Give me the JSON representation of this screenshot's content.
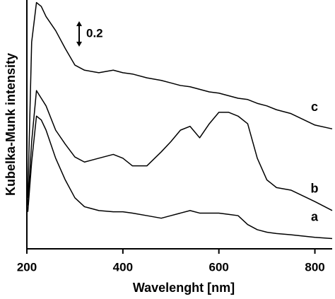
{
  "chart_data": {
    "type": "line",
    "x_label": "Wavelenght [nm]",
    "y_label": "Kubelka-Munk intensity",
    "x": [
      202,
      210,
      220,
      230,
      240,
      260,
      280,
      300,
      320,
      350,
      380,
      400,
      420,
      450,
      480,
      500,
      520,
      540,
      560,
      580,
      600,
      620,
      640,
      660,
      680,
      700,
      720,
      750,
      800,
      836
    ],
    "series": [
      {
        "name": "a",
        "color": "#000000",
        "values": [
          0.29,
          0.68,
          1.04,
          1.01,
          0.93,
          0.71,
          0.54,
          0.4,
          0.33,
          0.3,
          0.29,
          0.29,
          0.28,
          0.26,
          0.24,
          0.26,
          0.28,
          0.3,
          0.28,
          0.28,
          0.28,
          0.27,
          0.26,
          0.19,
          0.15,
          0.13,
          0.12,
          0.11,
          0.09,
          0.08
        ]
      },
      {
        "name": "b",
        "color": "#000000",
        "values": [
          0.34,
          0.84,
          1.24,
          1.18,
          1.12,
          0.93,
          0.82,
          0.72,
          0.68,
          0.71,
          0.74,
          0.71,
          0.65,
          0.65,
          0.76,
          0.84,
          0.93,
          0.96,
          0.87,
          0.98,
          1.07,
          1.07,
          1.04,
          0.98,
          0.71,
          0.54,
          0.48,
          0.46,
          0.37,
          0.3
        ]
      },
      {
        "name": "c",
        "color": "#000000",
        "values": [
          0.4,
          1.62,
          1.93,
          1.9,
          1.82,
          1.71,
          1.57,
          1.44,
          1.4,
          1.38,
          1.4,
          1.38,
          1.37,
          1.34,
          1.32,
          1.3,
          1.28,
          1.27,
          1.25,
          1.23,
          1.22,
          1.2,
          1.18,
          1.17,
          1.14,
          1.12,
          1.09,
          1.06,
          0.97,
          0.94
        ]
      }
    ],
    "xlim": [
      200,
      836
    ],
    "xticks": [
      200,
      400,
      600,
      800
    ],
    "ylim": [
      0,
      1.95
    ],
    "scale_bar": 0.2,
    "grid": false
  }
}
